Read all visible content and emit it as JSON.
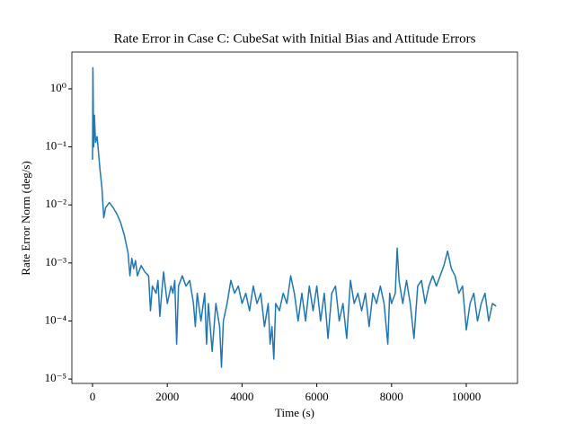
{
  "chart_data": {
    "type": "line",
    "title": "Rate Error in Case C: CubeSat with Initial Bias and Attitude Errors",
    "x_label": "Time (s)",
    "y_label": "Rate Error Norm (deg/s)",
    "log_y": true,
    "grid": false,
    "xlim": [
      -553,
      11370
    ],
    "ylim": [
      8.4e-06,
      4.3
    ],
    "xticks": [
      0,
      2000,
      4000,
      6000,
      8000,
      10000
    ],
    "yticks": [
      {
        "value": 1e-05,
        "label": "10⁻⁵"
      },
      {
        "value": 0.0001,
        "label": "10⁻⁴"
      },
      {
        "value": 0.001,
        "label": "10⁻³"
      },
      {
        "value": 0.01,
        "label": "10⁻²"
      },
      {
        "value": 0.1,
        "label": "10⁻¹"
      },
      {
        "value": 1,
        "label": "10⁰"
      }
    ],
    "x": [
      0,
      10,
      30,
      50,
      80,
      120,
      160,
      200,
      250,
      300,
      350,
      450,
      550,
      650,
      750,
      850,
      950,
      1000,
      1050,
      1100,
      1150,
      1200,
      1300,
      1400,
      1500,
      1550,
      1600,
      1700,
      1750,
      1800,
      1850,
      1900,
      2000,
      2100,
      2150,
      2200,
      2250,
      2300,
      2400,
      2500,
      2600,
      2700,
      2750,
      2800,
      2900,
      3000,
      3050,
      3100,
      3200,
      3300,
      3400,
      3450,
      3500,
      3600,
      3700,
      3800,
      3900,
      4000,
      4100,
      4200,
      4300,
      4400,
      4500,
      4600,
      4700,
      4750,
      4800,
      4850,
      4900,
      5000,
      5100,
      5200,
      5300,
      5400,
      5500,
      5600,
      5700,
      5800,
      5900,
      6000,
      6100,
      6200,
      6300,
      6400,
      6500,
      6600,
      6700,
      6800,
      6900,
      7000,
      7100,
      7200,
      7300,
      7400,
      7500,
      7600,
      7700,
      7800,
      7900,
      7950,
      8000,
      8100,
      8150,
      8200,
      8300,
      8400,
      8500,
      8600,
      8700,
      8800,
      8900,
      9000,
      9100,
      9200,
      9300,
      9400,
      9500,
      9600,
      9700,
      9800,
      9900,
      10000,
      10100,
      10200,
      10300,
      10400,
      10500,
      10600,
      10700,
      10800
    ],
    "series": [
      {
        "color": "#1f77b4",
        "values": [
          0.06,
          2.3,
          0.1,
          0.35,
          0.12,
          0.15,
          0.08,
          0.04,
          0.02,
          0.006,
          0.009,
          0.011,
          0.009,
          0.007,
          0.005,
          0.003,
          0.0015,
          0.0006,
          0.0012,
          0.0008,
          0.0011,
          0.0006,
          0.0009,
          0.0007,
          0.0006,
          0.00015,
          0.0004,
          0.0003,
          0.0005,
          0.00012,
          0.0003,
          0.0007,
          0.0002,
          0.0004,
          0.0003,
          0.0005,
          4e-05,
          0.0004,
          0.0006,
          0.0004,
          0.0005,
          0.0002,
          8e-05,
          0.0003,
          0.0001,
          0.0003,
          4e-05,
          0.0002,
          3e-05,
          0.0002,
          8e-05,
          1.6e-05,
          0.0001,
          0.0002,
          0.0005,
          0.0003,
          0.0004,
          0.0002,
          0.0003,
          0.00015,
          0.0004,
          0.0002,
          0.0003,
          8e-05,
          0.0002,
          4e-05,
          8e-05,
          2.2e-05,
          0.0002,
          0.00015,
          0.0003,
          0.0002,
          0.0006,
          0.0003,
          0.0001,
          0.0003,
          0.0001,
          0.0004,
          0.00015,
          0.0004,
          0.0001,
          0.0003,
          5e-05,
          0.0003,
          0.0004,
          0.0001,
          0.0002,
          5e-05,
          0.0005,
          0.0002,
          0.0003,
          0.00015,
          0.0003,
          8e-05,
          0.0003,
          0.0002,
          0.0004,
          0.0002,
          4e-05,
          0.0003,
          0.0002,
          0.0003,
          0.0018,
          0.0005,
          0.0002,
          0.0005,
          0.0002,
          5e-05,
          0.0004,
          0.0005,
          0.0002,
          0.0004,
          0.0006,
          0.0004,
          0.0006,
          0.0009,
          0.0016,
          0.0008,
          0.0006,
          0.0003,
          0.0004,
          7e-05,
          0.0002,
          0.0003,
          0.0001,
          0.0002,
          0.0003,
          0.0001,
          0.0002,
          0.00018
        ]
      }
    ]
  }
}
